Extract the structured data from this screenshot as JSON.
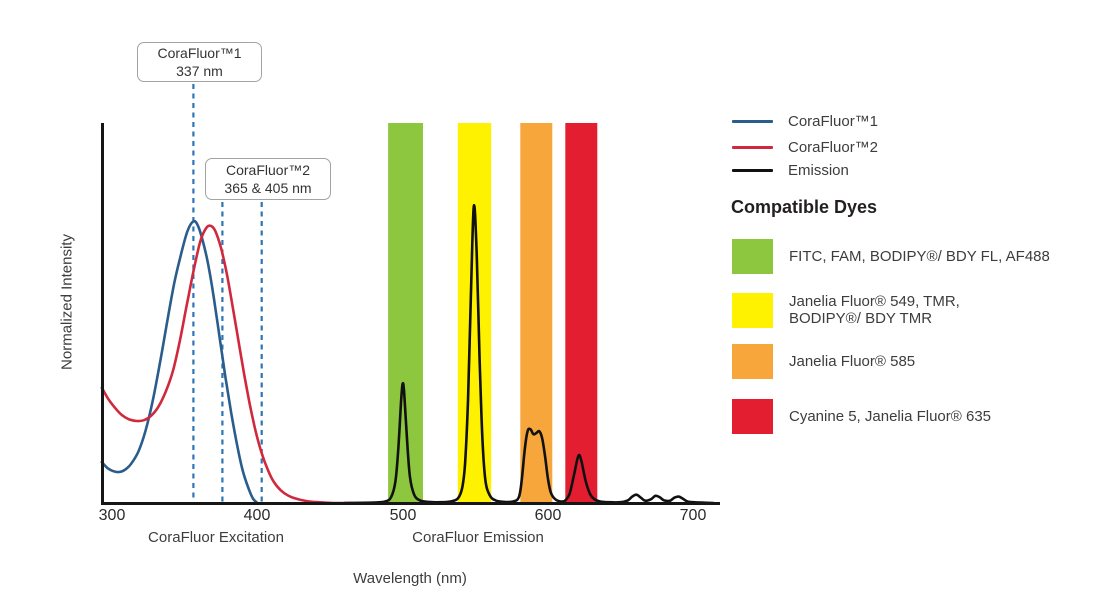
{
  "chart_data": {
    "type": "line",
    "xlabel": "Wavelength (nm)",
    "ylabel": "Normalized Intensity",
    "x_ticks": [
      "300",
      "400",
      "500",
      "600",
      "700"
    ],
    "xlim": [
      293,
      718
    ],
    "ylim": [
      0,
      1
    ],
    "grid": false,
    "x_section_labels": [
      "CoraFluor Excitation",
      "CoraFluor Emission"
    ],
    "callouts": [
      {
        "title": "CoraFluor™1",
        "value": "337 nm"
      },
      {
        "title": "CoraFluor™2",
        "value": "365 & 405 nm"
      }
    ],
    "marker_lines": {
      "color": "#2e75b6",
      "drawn_at_nm": [
        356,
        376,
        403
      ]
    },
    "bands": [
      {
        "dye_group": "FITC, FAM, BODIPY®/ BDY FL, AF488",
        "color": "#8dc63f",
        "nm_range": [
          490,
          514
        ]
      },
      {
        "dye_group": "Janelia Fluor® 549, TMR, BODIPY®/ BDY TMR",
        "color": "#fff200",
        "nm_range": [
          538,
          561
        ]
      },
      {
        "dye_group": "Janelia Fluor® 585",
        "color": "#f7a63b",
        "nm_range": [
          581,
          603
        ]
      },
      {
        "dye_group": "Cyanine 5, Janelia Fluor® 635",
        "color": "#e41e31",
        "nm_range": [
          612,
          634
        ]
      }
    ],
    "series": [
      {
        "name": "CoraFluor™1",
        "color": "#2a5d8c",
        "points": [
          [
            293,
            0.108
          ],
          [
            297,
            0.092
          ],
          [
            301,
            0.084
          ],
          [
            305,
            0.082
          ],
          [
            309,
            0.088
          ],
          [
            313,
            0.103
          ],
          [
            318,
            0.135
          ],
          [
            323,
            0.19
          ],
          [
            328,
            0.27
          ],
          [
            333,
            0.37
          ],
          [
            338,
            0.48
          ],
          [
            343,
            0.585
          ],
          [
            348,
            0.665
          ],
          [
            352,
            0.72
          ],
          [
            356,
            0.745
          ],
          [
            359,
            0.735
          ],
          [
            362,
            0.7
          ],
          [
            366,
            0.635
          ],
          [
            370,
            0.545
          ],
          [
            374,
            0.44
          ],
          [
            378,
            0.335
          ],
          [
            382,
            0.24
          ],
          [
            386,
            0.155
          ],
          [
            390,
            0.085
          ],
          [
            394,
            0.038
          ],
          [
            397,
            0.012
          ],
          [
            400,
            0.0
          ]
        ]
      },
      {
        "name": "CoraFluor™2",
        "color": "#d0293e",
        "points": [
          [
            293,
            0.305
          ],
          [
            297,
            0.278
          ],
          [
            302,
            0.252
          ],
          [
            307,
            0.232
          ],
          [
            312,
            0.221
          ],
          [
            317,
            0.217
          ],
          [
            322,
            0.219
          ],
          [
            327,
            0.231
          ],
          [
            332,
            0.255
          ],
          [
            337,
            0.295
          ],
          [
            342,
            0.35
          ],
          [
            347,
            0.435
          ],
          [
            352,
            0.535
          ],
          [
            357,
            0.63
          ],
          [
            361,
            0.695
          ],
          [
            365,
            0.728
          ],
          [
            368,
            0.733
          ],
          [
            371,
            0.72
          ],
          [
            375,
            0.675
          ],
          [
            379,
            0.607
          ],
          [
            383,
            0.52
          ],
          [
            387,
            0.43
          ],
          [
            391,
            0.34
          ],
          [
            395,
            0.258
          ],
          [
            399,
            0.188
          ],
          [
            403,
            0.132
          ],
          [
            407,
            0.09
          ],
          [
            411,
            0.058
          ],
          [
            416,
            0.034
          ],
          [
            421,
            0.02
          ],
          [
            427,
            0.011
          ],
          [
            434,
            0.005
          ],
          [
            442,
            0.002
          ],
          [
            452,
            0.0
          ],
          [
            465,
            0.0
          ]
        ]
      },
      {
        "name": "Emission",
        "color": "#111111",
        "points": [
          [
            460,
            0.0
          ],
          [
            480,
            0.001
          ],
          [
            488,
            0.004
          ],
          [
            492,
            0.015
          ],
          [
            495,
            0.055
          ],
          [
            497,
            0.14
          ],
          [
            499,
            0.27
          ],
          [
            500,
            0.315
          ],
          [
            501,
            0.295
          ],
          [
            503,
            0.17
          ],
          [
            505,
            0.07
          ],
          [
            508,
            0.022
          ],
          [
            512,
            0.007
          ],
          [
            518,
            0.003
          ],
          [
            526,
            0.002
          ],
          [
            533,
            0.004
          ],
          [
            538,
            0.012
          ],
          [
            541,
            0.04
          ],
          [
            543,
            0.105
          ],
          [
            545,
            0.27
          ],
          [
            547,
            0.55
          ],
          [
            549,
            0.785
          ],
          [
            551,
            0.66
          ],
          [
            553,
            0.38
          ],
          [
            555,
            0.165
          ],
          [
            557,
            0.06
          ],
          [
            560,
            0.02
          ],
          [
            564,
            0.007
          ],
          [
            570,
            0.003
          ],
          [
            576,
            0.004
          ],
          [
            580,
            0.015
          ],
          [
            582,
            0.06
          ],
          [
            584,
            0.14
          ],
          [
            586,
            0.19
          ],
          [
            588,
            0.195
          ],
          [
            590,
            0.182
          ],
          [
            592,
            0.185
          ],
          [
            594,
            0.19
          ],
          [
            596,
            0.172
          ],
          [
            598,
            0.125
          ],
          [
            600,
            0.065
          ],
          [
            602,
            0.028
          ],
          [
            605,
            0.01
          ],
          [
            609,
            0.004
          ],
          [
            612,
            0.007
          ],
          [
            615,
            0.025
          ],
          [
            618,
            0.075
          ],
          [
            621,
            0.125
          ],
          [
            623,
            0.112
          ],
          [
            626,
            0.058
          ],
          [
            629,
            0.024
          ],
          [
            632,
            0.01
          ],
          [
            636,
            0.004
          ],
          [
            642,
            0.002
          ],
          [
            650,
            0.002
          ],
          [
            655,
            0.007
          ],
          [
            658,
            0.017
          ],
          [
            661,
            0.022
          ],
          [
            664,
            0.014
          ],
          [
            667,
            0.006
          ],
          [
            671,
            0.01
          ],
          [
            674,
            0.019
          ],
          [
            677,
            0.015
          ],
          [
            680,
            0.007
          ],
          [
            684,
            0.006
          ],
          [
            687,
            0.014
          ],
          [
            690,
            0.017
          ],
          [
            693,
            0.011
          ],
          [
            696,
            0.004
          ],
          [
            700,
            0.002
          ],
          [
            706,
            0.001
          ],
          [
            714,
            0.0
          ]
        ]
      }
    ]
  },
  "legend": {
    "items": [
      {
        "label": "CoraFluor™1",
        "color": "#2a5d8c"
      },
      {
        "label": "CoraFluor™2",
        "color": "#d0293e"
      },
      {
        "label": "Emission",
        "color": "#111111"
      }
    ]
  },
  "dyes": {
    "heading": "Compatible Dyes",
    "items": [
      {
        "color": "#8dc63f",
        "lines": [
          "FITC, FAM, BODIPY®/ BDY FL, AF488"
        ]
      },
      {
        "color": "#fff200",
        "lines": [
          "Janelia Fluor® 549, TMR,",
          "BODIPY®/ BDY TMR"
        ]
      },
      {
        "color": "#f7a63b",
        "lines": [
          "Janelia Fluor® 585"
        ]
      },
      {
        "color": "#e41e31",
        "lines": [
          "Cyanine 5, Janelia Fluor® 635"
        ]
      }
    ]
  }
}
